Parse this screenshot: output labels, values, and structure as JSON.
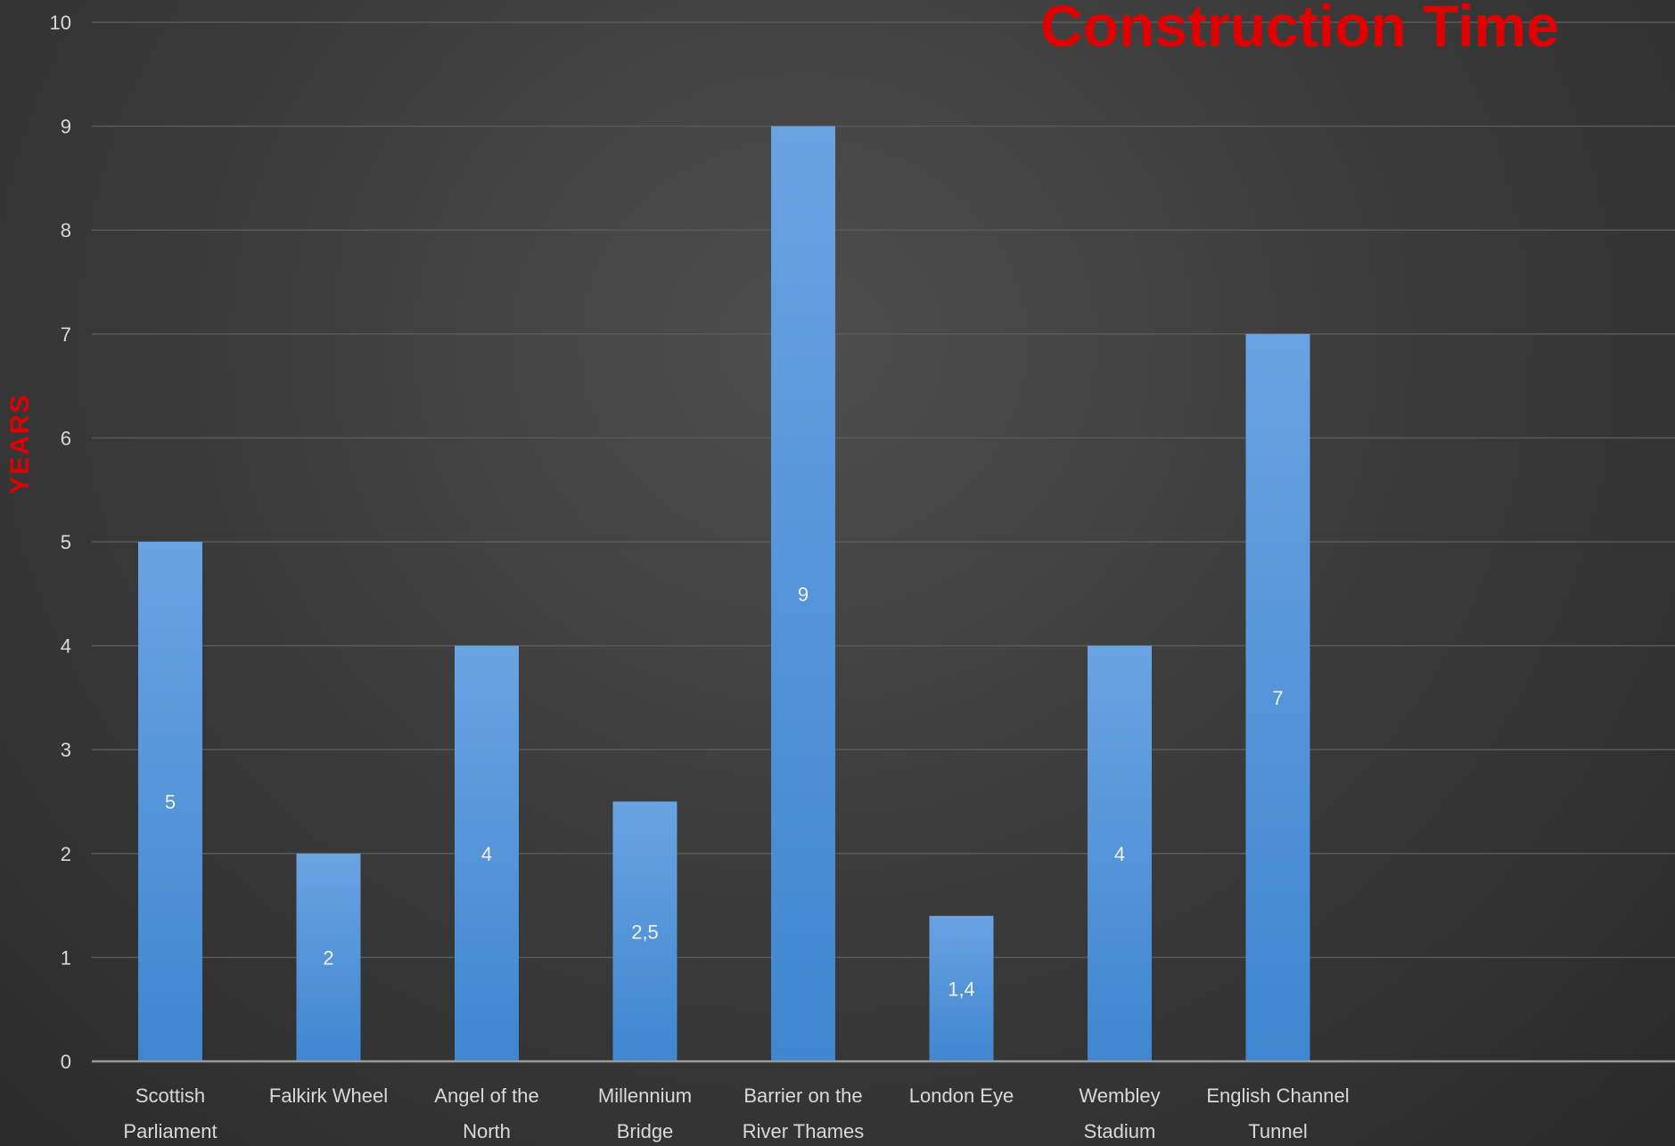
{
  "chart_data": {
    "type": "bar",
    "title": "Construction Time",
    "xlabel": "",
    "ylabel": "YEARS",
    "ylim": [
      0,
      10
    ],
    "yticks": [
      0,
      1,
      2,
      3,
      4,
      5,
      6,
      7,
      8,
      9,
      10
    ],
    "categories": [
      [
        "Scottish",
        "Parliament"
      ],
      [
        "Falkirk Wheel"
      ],
      [
        "Angel of the",
        "North"
      ],
      [
        "Millennium",
        "Bridge"
      ],
      [
        "Barrier on the",
        "River Thames"
      ],
      [
        "London Eye"
      ],
      [
        "Wembley",
        "Stadium"
      ],
      [
        "English Channel",
        "Tunnel"
      ]
    ],
    "values": [
      5,
      2,
      4,
      2.5,
      9,
      1.4,
      4,
      7
    ],
    "data_labels": [
      "5",
      "2",
      "4",
      "2,5",
      "9",
      "1,4",
      "4",
      "7"
    ],
    "grid": true,
    "legend": "none",
    "colors": {
      "bar_top": "#6aa3e2",
      "bar_bottom": "#3f86d0",
      "title": "#e00000",
      "axis_title": "#e00000",
      "text": "#d9d9d9",
      "gridline": "#5a5a5a",
      "background": "#3c3c3c"
    }
  }
}
